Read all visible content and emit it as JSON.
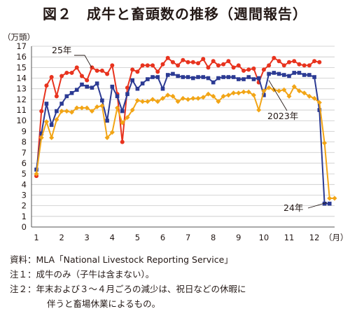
{
  "title": "図２　成牛と畜頭数の推移（週間報告）",
  "notes": [
    "資料：MLA「National Livestock Reporting Service」",
    "注１：成牛のみ（子牛は含まない）。",
    "注２：年末および３～４月ごろの減少は、祝日などの休暇に",
    "伴うと畜場休業によるもの。"
  ],
  "chart_data": {
    "type": "line",
    "ylabel": "（万頭）",
    "xlabel": "（月）",
    "ylim": [
      0,
      17
    ],
    "yticks": [
      0,
      1,
      2,
      3,
      4,
      5,
      6,
      7,
      8,
      9,
      10,
      11,
      12,
      13,
      14,
      15,
      16,
      17
    ],
    "xlim": [
      1,
      12.8
    ],
    "xticks": [
      1,
      2,
      3,
      4,
      5,
      6,
      7,
      8,
      9,
      10,
      11,
      12
    ],
    "grid": "horizontal",
    "series": [
      {
        "name": "25年",
        "color": "#e8331e",
        "marker": "circle",
        "x": [
          1.0,
          1.2,
          1.4,
          1.6,
          1.8,
          2.0,
          2.2,
          2.4,
          2.6,
          2.8,
          3.0,
          3.2,
          3.4,
          3.6,
          3.8,
          4.0,
          4.2,
          4.4,
          4.6,
          4.8,
          5.0,
          5.2,
          5.4,
          5.6,
          5.8,
          6.0,
          6.2,
          6.4,
          6.6,
          6.8,
          7.0,
          7.2,
          7.4,
          7.6,
          7.8,
          8.0,
          8.2,
          8.4,
          8.6,
          8.8,
          9.0,
          9.2,
          9.4,
          9.6,
          9.8,
          10.0,
          10.2,
          10.4,
          10.6,
          10.8,
          11.0,
          11.2,
          11.4,
          11.6,
          11.8,
          12.0,
          12.2
        ],
        "y": [
          4.8,
          10.9,
          13.3,
          14.1,
          12.3,
          14.2,
          14.5,
          14.5,
          15.0,
          14.2,
          13.8,
          15.0,
          14.7,
          14.7,
          14.4,
          15.2,
          12.5,
          8.0,
          13.1,
          14.8,
          14.6,
          15.2,
          15.2,
          15.2,
          14.6,
          15.3,
          15.9,
          15.5,
          15.2,
          15.7,
          15.5,
          15.5,
          15.4,
          15.8,
          15.0,
          15.6,
          15.2,
          15.3,
          15.6,
          15.0,
          15.2,
          14.7,
          14.8,
          14.9,
          13.6,
          14.8,
          15.2,
          15.9,
          15.6,
          15.2,
          15.5,
          15.6,
          15.3,
          15.2,
          15.2,
          15.6,
          15.5
        ]
      },
      {
        "name": "2023年",
        "color": "#2b3a93",
        "marker": "square",
        "x": [
          1.0,
          1.2,
          1.4,
          1.6,
          1.8,
          2.0,
          2.2,
          2.4,
          2.6,
          2.8,
          3.0,
          3.2,
          3.4,
          3.6,
          3.8,
          4.0,
          4.2,
          4.4,
          4.6,
          4.8,
          5.0,
          5.2,
          5.4,
          5.6,
          5.8,
          6.0,
          6.2,
          6.4,
          6.6,
          6.8,
          7.0,
          7.2,
          7.4,
          7.6,
          7.8,
          8.0,
          8.2,
          8.4,
          8.6,
          8.8,
          9.0,
          9.2,
          9.4,
          9.6,
          9.8,
          10.0,
          10.2,
          10.4,
          10.6,
          10.8,
          11.0,
          11.2,
          11.4,
          11.6,
          11.8,
          12.0,
          12.2,
          12.4,
          12.6
        ],
        "y": [
          5.4,
          8.8,
          11.6,
          9.6,
          10.9,
          11.6,
          12.3,
          12.6,
          12.9,
          13.4,
          13.2,
          13.1,
          13.5,
          11.9,
          10.0,
          13.2,
          12.3,
          10.9,
          12.5,
          13.8,
          13.0,
          13.5,
          13.9,
          14.1,
          14.1,
          13.0,
          14.3,
          14.4,
          14.2,
          14.1,
          14.1,
          14.0,
          14.1,
          14.1,
          14.0,
          13.6,
          14.0,
          14.1,
          14.1,
          14.1,
          13.9,
          13.9,
          14.1,
          13.9,
          14.0,
          12.4,
          14.4,
          14.5,
          14.4,
          14.3,
          14.2,
          14.5,
          14.5,
          14.3,
          14.3,
          14.1,
          11.0,
          2.2,
          2.2
        ]
      },
      {
        "name": "24年",
        "color": "#f2a516",
        "marker": "diamond",
        "x": [
          1.0,
          1.2,
          1.4,
          1.6,
          1.8,
          2.0,
          2.2,
          2.4,
          2.6,
          2.8,
          3.0,
          3.2,
          3.4,
          3.6,
          3.8,
          4.0,
          4.2,
          4.4,
          4.6,
          4.8,
          5.0,
          5.2,
          5.4,
          5.6,
          5.8,
          6.0,
          6.2,
          6.4,
          6.6,
          6.8,
          7.0,
          7.2,
          7.4,
          7.6,
          7.8,
          8.0,
          8.2,
          8.4,
          8.6,
          8.8,
          9.0,
          9.2,
          9.4,
          9.6,
          9.8,
          10.0,
          10.2,
          10.4,
          10.6,
          10.8,
          11.0,
          11.2,
          11.4,
          11.6,
          11.8,
          12.0,
          12.2,
          12.4,
          12.6,
          12.8
        ],
        "y": [
          5.0,
          8.4,
          9.9,
          8.4,
          10.1,
          10.9,
          10.9,
          10.8,
          11.2,
          11.2,
          11.2,
          10.9,
          11.3,
          11.4,
          8.4,
          8.9,
          11.2,
          9.8,
          10.3,
          11.0,
          11.9,
          11.8,
          11.8,
          12.0,
          11.8,
          12.1,
          12.4,
          12.3,
          11.8,
          12.1,
          12.0,
          12.1,
          12.1,
          12.2,
          12.5,
          12.3,
          11.8,
          12.3,
          12.4,
          12.6,
          12.6,
          12.7,
          12.7,
          12.4,
          11.0,
          12.8,
          13.1,
          12.9,
          12.8,
          12.9,
          12.3,
          13.2,
          12.8,
          12.6,
          12.3,
          12.1,
          11.7,
          7.9,
          2.7,
          2.7
        ]
      }
    ],
    "annotations": [
      {
        "text": "25年",
        "series": "25年"
      },
      {
        "text": "2023年",
        "series": "2023年"
      },
      {
        "text": "24年",
        "series": "24年"
      }
    ]
  }
}
